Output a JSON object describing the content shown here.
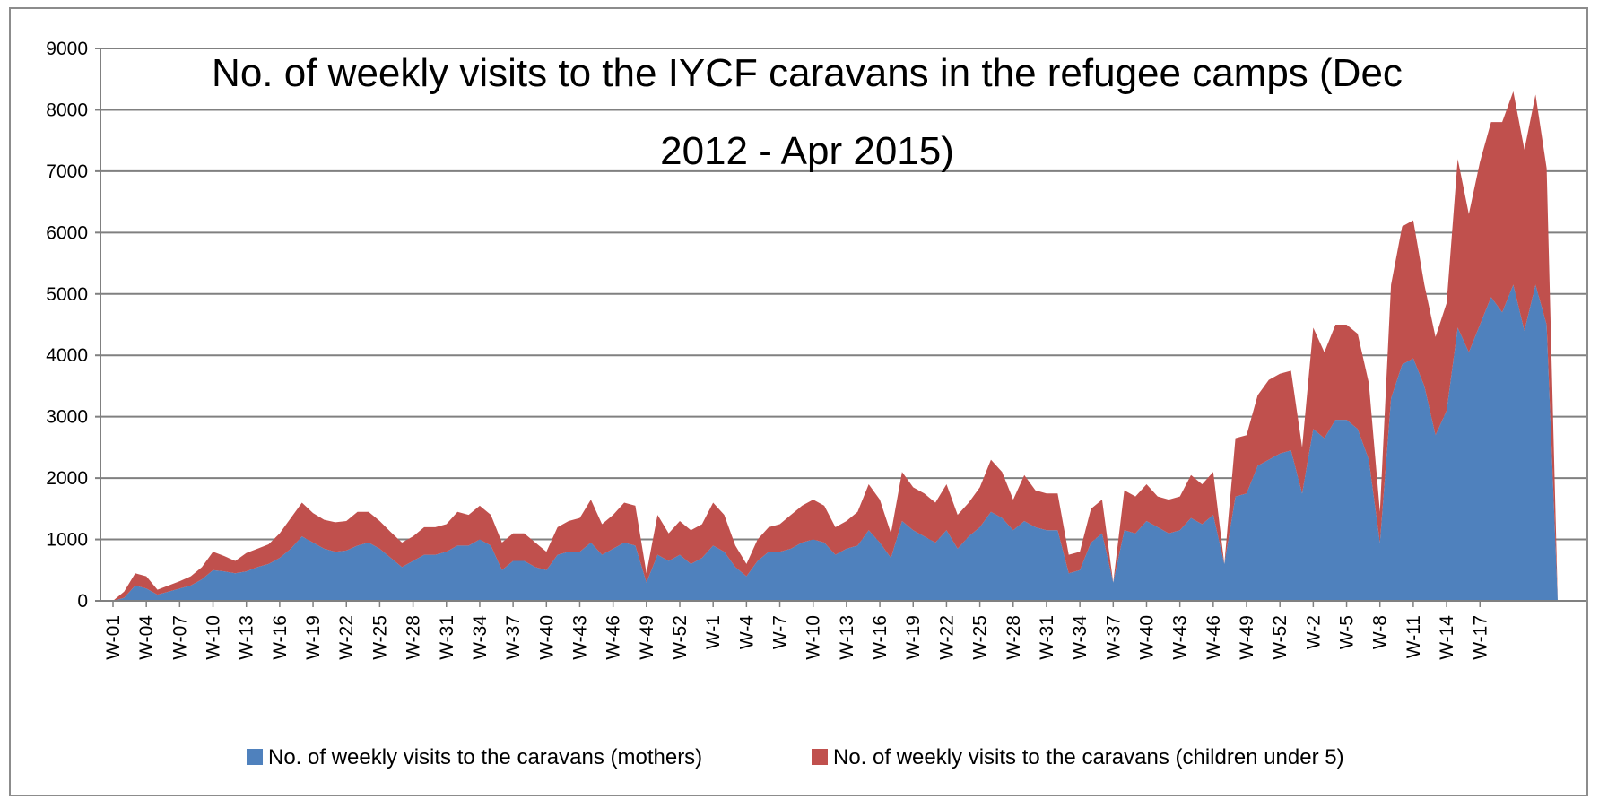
{
  "chart_data": {
    "type": "area",
    "stacked": true,
    "title_lines": [
      "No. of weekly visits to the IYCF caravans in the refugee camps (Dec",
      "2012 - Apr 2015)"
    ],
    "xlabel": "",
    "ylabel": "",
    "ylim": [
      0,
      9000
    ],
    "yticks": [
      0,
      1000,
      2000,
      3000,
      4000,
      5000,
      6000,
      7000,
      8000,
      9000
    ],
    "grid": true,
    "legend_position": "bottom",
    "x_tick_labels": [
      "W-01",
      "W-04",
      "W-07",
      "W-10",
      "W-13",
      "W-16",
      "W-19",
      "W-22",
      "W-25",
      "W-28",
      "W-31",
      "W-34",
      "W-37",
      "W-40",
      "W-43",
      "W-46",
      "W-49",
      "W-52",
      "W-1",
      "W-4",
      "W-7",
      "W-10",
      "W-13",
      "W-16",
      "W-19",
      "W-22",
      "W-25",
      "W-28",
      "W-31",
      "W-34",
      "W-37",
      "W-40",
      "W-43",
      "W-46",
      "W-49",
      "W-52",
      "W-2",
      "W-5",
      "W-8",
      "W-11",
      "W-14",
      "W-17"
    ],
    "series": [
      {
        "name": "No. of weekly visits to the caravans (mothers)",
        "color": "#4f81bd",
        "values": [
          0,
          50,
          250,
          200,
          100,
          150,
          200,
          250,
          350,
          500,
          480,
          450,
          480,
          550,
          600,
          700,
          850,
          1050,
          950,
          850,
          800,
          820,
          900,
          950,
          850,
          700,
          550,
          650,
          750,
          750,
          800,
          900,
          900,
          1000,
          900,
          500,
          650,
          650,
          550,
          500,
          750,
          800,
          800,
          950,
          750,
          850,
          950,
          900,
          300,
          750,
          650,
          750,
          600,
          700,
          900,
          800,
          550,
          400,
          650,
          800,
          800,
          850,
          950,
          1000,
          950,
          750,
          850,
          900,
          1150,
          950,
          700,
          1300,
          1150,
          1050,
          950,
          1150,
          850,
          1050,
          1200,
          1450,
          1350,
          1150,
          1300,
          1200,
          1150,
          1150,
          450,
          500,
          950,
          1100,
          300,
          1150,
          1100,
          1300,
          1200,
          1100,
          1150,
          1350,
          1250,
          1400,
          600,
          1700,
          1750,
          2200,
          2300,
          2400,
          2450,
          1750,
          2800,
          2650,
          2950,
          2950,
          2800,
          2300,
          950,
          3300,
          3850,
          3950,
          3500,
          2700,
          3100,
          4450,
          4050,
          4500,
          4950,
          4700,
          5150,
          4400,
          5150,
          4500,
          0
        ]
      },
      {
        "name": "No. of weekly visits to the caravans (children under 5)",
        "color": "#c0504d",
        "values": [
          0,
          100,
          200,
          200,
          80,
          100,
          120,
          150,
          200,
          300,
          250,
          200,
          300,
          300,
          320,
          400,
          500,
          550,
          480,
          470,
          480,
          480,
          550,
          500,
          450,
          420,
          400,
          400,
          450,
          450,
          450,
          550,
          500,
          550,
          500,
          450,
          450,
          450,
          400,
          300,
          450,
          500,
          550,
          700,
          500,
          550,
          650,
          650,
          150,
          650,
          450,
          550,
          550,
          550,
          700,
          600,
          350,
          200,
          350,
          400,
          450,
          550,
          600,
          650,
          600,
          450,
          450,
          550,
          750,
          700,
          400,
          800,
          700,
          700,
          650,
          750,
          550,
          550,
          650,
          850,
          750,
          500,
          750,
          600,
          600,
          600,
          300,
          300,
          550,
          550,
          0,
          650,
          600,
          600,
          500,
          550,
          550,
          700,
          650,
          700,
          0,
          950,
          950,
          1150,
          1300,
          1300,
          1300,
          750,
          1650,
          1400,
          1550,
          1550,
          1550,
          1250,
          500,
          1850,
          2250,
          2250,
          1650,
          1600,
          1750,
          2750,
          2250,
          2650,
          2850,
          3100,
          3150,
          2950,
          3100,
          2550,
          0
        ]
      }
    ]
  }
}
